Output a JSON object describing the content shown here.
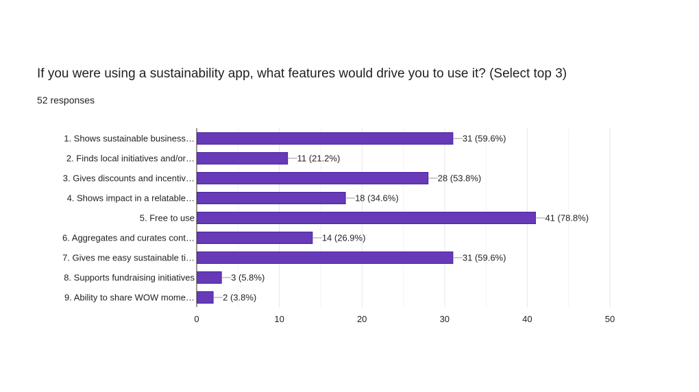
{
  "title": "If you were using a sustainability app, what features would drive you to use it? (Select top 3)",
  "responses": "52 responses",
  "colors": {
    "bar": "#673ab7",
    "bar_border": "#4a1fa0"
  },
  "chart_data": {
    "type": "bar",
    "orientation": "horizontal",
    "categories": [
      "1. Shows sustainable business…",
      "2. Finds local initiatives and/or…",
      "3. Gives discounts and incentiv…",
      "4. Shows impact in a relatable…",
      "5. Free to use",
      "6. Aggregates and curates cont…",
      "7. Gives me easy sustainable ti…",
      "8. Supports fundraising initiatives",
      "9. Ability to share WOW mome…"
    ],
    "values": [
      31,
      11,
      28,
      18,
      41,
      14,
      31,
      3,
      2
    ],
    "data_labels": [
      "31 (59.6%)",
      "11 (21.2%)",
      "28 (53.8%)",
      "18 (34.6%)",
      "41 (78.8%)",
      "14 (26.9%)",
      "31 (59.6%)",
      "3 (5.8%)",
      "2 (3.8%)"
    ],
    "xlim": [
      0,
      50
    ],
    "xticks": [
      "0",
      "10",
      "20",
      "30",
      "40",
      "50"
    ],
    "grid": true
  }
}
